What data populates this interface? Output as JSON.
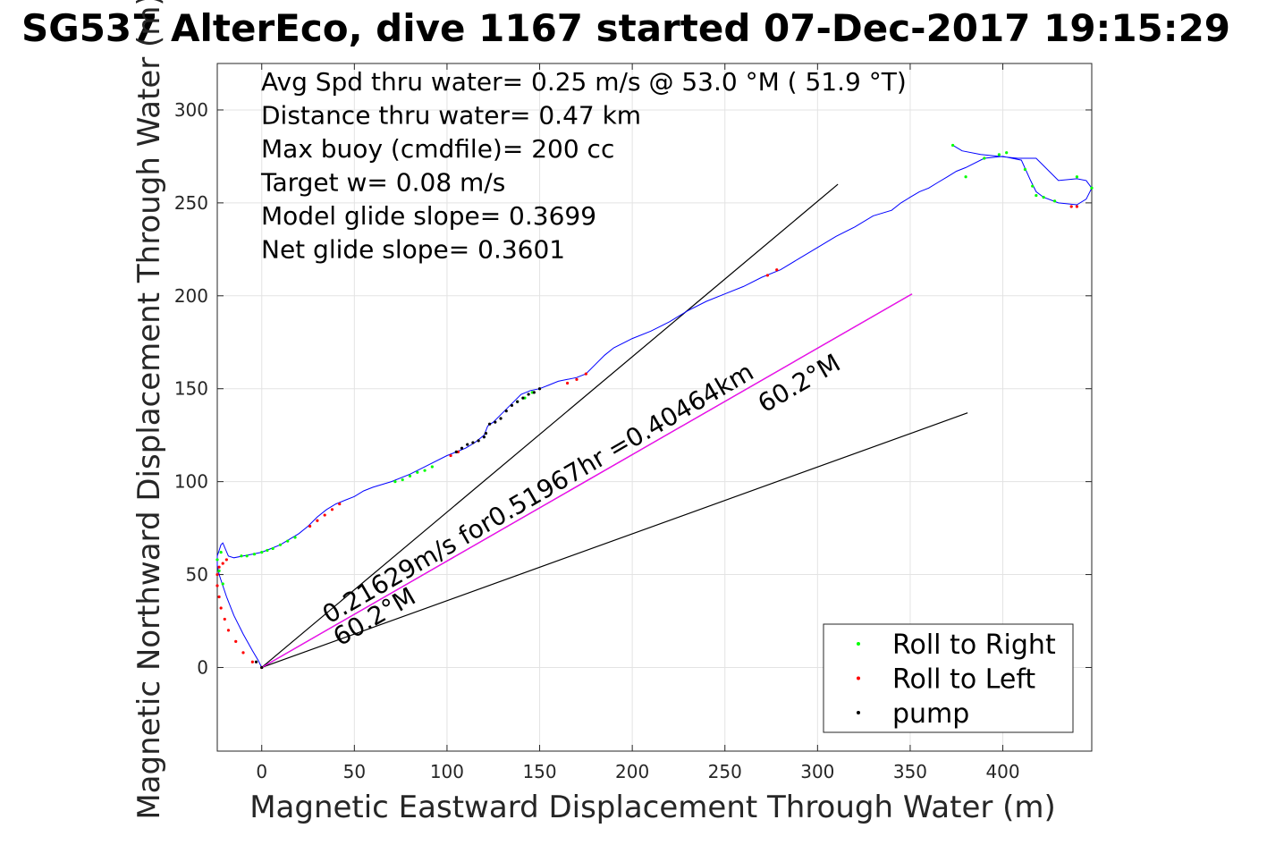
{
  "chart_data": {
    "type": "line",
    "title": "SG537 AlterEco, dive 1167 started 07-Dec-2017 19:15:29",
    "xlabel": "Magnetic Eastward Displacement Through Water (m)",
    "ylabel": "Magnetic Northward Displacement Through Water (m)",
    "xlim": [
      -24,
      448
    ],
    "ylim": [
      -45,
      325
    ],
    "x_ticks": [
      0,
      50,
      100,
      150,
      200,
      250,
      300,
      350,
      400
    ],
    "x_tick_labels": [
      "0",
      "50",
      "100",
      "150",
      "200",
      "250",
      "300",
      "350",
      "400"
    ],
    "y_ticks": [
      0,
      50,
      100,
      150,
      200,
      250,
      300
    ],
    "y_tick_labels": [
      "0",
      "50",
      "100",
      "150",
      "200",
      "250",
      "300"
    ],
    "grid": true,
    "annotations": [
      "Avg Spd thru water=  0.25 m/s @  53.0 °M ( 51.9 °T)",
      "Distance thru water=  0.47 km",
      "Max buoy (cmdfile)= 200 cc",
      "Target w= 0.08 m/s",
      "Model glide slope= 0.3699",
      "Net glide slope= 0.3601"
    ],
    "line_labels": {
      "summary": "0.21629m/s for0.51967hr =0.40464km",
      "heading_start": "60.2°M",
      "heading_end": "60.2°M"
    },
    "legend": {
      "placement": "bottom-right",
      "entries": [
        {
          "label": "Roll to Right",
          "color": "#00ff00"
        },
        {
          "label": "Roll to Left",
          "color": "#ff0000"
        },
        {
          "label": "pump",
          "color": "#000000"
        }
      ]
    },
    "series": [
      {
        "color": "#0000ff",
        "x": [
          0,
          -2,
          -5,
          -10,
          -15,
          -19,
          -21,
          -23,
          -24,
          -24,
          -23,
          -22,
          -21,
          -18,
          -15,
          -10,
          -5,
          0,
          5,
          10,
          15,
          20,
          25,
          30,
          35,
          40,
          45,
          50,
          55,
          60,
          70,
          80,
          90,
          100,
          105,
          110,
          115,
          120,
          122,
          125,
          130,
          135,
          140,
          145,
          150,
          155,
          160,
          165,
          170,
          175,
          180,
          185,
          190,
          200,
          210,
          220,
          230,
          240,
          250,
          260,
          270,
          280,
          290,
          300,
          310,
          320,
          330,
          340,
          345,
          350,
          355,
          360,
          365,
          370,
          375,
          380,
          390,
          400,
          410,
          415,
          418,
          422,
          430,
          440,
          445,
          448,
          445,
          440,
          430,
          418,
          408,
          398,
          388,
          378,
          373
        ],
        "y": [
          0,
          4,
          9,
          18,
          28,
          38,
          44,
          50,
          55,
          60,
          63,
          66,
          67,
          60,
          59,
          60,
          61,
          62,
          64,
          66,
          69,
          72,
          76,
          81,
          85,
          88,
          90,
          92,
          95,
          97,
          100,
          104,
          109,
          114,
          116,
          118,
          121,
          125,
          130,
          132,
          137,
          142,
          147,
          149,
          150,
          152,
          154,
          155,
          156,
          158,
          163,
          168,
          172,
          177,
          181,
          186,
          192,
          197,
          201,
          205,
          210,
          214,
          220,
          226,
          232,
          237,
          243,
          246,
          250,
          253,
          256,
          258,
          261,
          264,
          267,
          269,
          274,
          275,
          273,
          262,
          256,
          253,
          250,
          249,
          252,
          258,
          262,
          263,
          262,
          274,
          274,
          275,
          276,
          278,
          281
        ]
      },
      {
        "name": "Roll to Right",
        "color": "#00ff00",
        "x": [
          -21,
          -23,
          -24,
          -22,
          -11,
          -8,
          -4,
          0,
          3,
          6,
          10,
          14,
          18,
          72,
          76,
          80,
          84,
          88,
          92,
          138,
          142,
          146,
          380,
          390,
          398,
          402,
          412,
          416,
          418,
          422,
          428,
          440,
          448,
          373
        ],
        "y": [
          45,
          52,
          58,
          62,
          60,
          60,
          61,
          62,
          63,
          64,
          66,
          68,
          70,
          100,
          101,
          103,
          105,
          106,
          108,
          143,
          145,
          148,
          264,
          274,
          276,
          277,
          268,
          259,
          254,
          253,
          251,
          264,
          258,
          281
        ]
      },
      {
        "name": "Roll to Left",
        "color": "#ff0000",
        "x": [
          0,
          -5,
          -10,
          -14,
          -18,
          -20,
          -22,
          -23,
          -24,
          -24,
          -23,
          -21,
          -19,
          26,
          30,
          34,
          38,
          42,
          102,
          106,
          165,
          170,
          175,
          273,
          278,
          437,
          440
        ],
        "y": [
          0,
          3,
          8,
          14,
          20,
          26,
          32,
          38,
          44,
          50,
          54,
          56,
          58,
          76,
          79,
          82,
          85,
          88,
          114,
          116,
          153,
          155,
          158,
          211,
          214,
          248,
          248
        ]
      },
      {
        "name": "pump",
        "color": "#000000",
        "x": [
          0,
          -3,
          105,
          108,
          111,
          114,
          117,
          120,
          121,
          123,
          126,
          129,
          132,
          135,
          138,
          141,
          144,
          147,
          150
        ],
        "y": [
          0,
          3,
          116,
          118,
          120,
          121,
          122,
          124,
          126,
          131,
          132,
          134,
          138,
          141,
          143,
          145,
          147,
          148,
          150
        ]
      }
    ],
    "reference_lines": [
      {
        "color": "#000000",
        "x": [
          0,
          311
        ],
        "y": [
          0,
          260
        ]
      },
      {
        "color": "#000000",
        "x": [
          0,
          381
        ],
        "y": [
          0,
          137
        ]
      },
      {
        "color": "#000000",
        "x": [
          0,
          351
        ],
        "y": [
          0,
          201
        ]
      },
      {
        "color": "#ff00ff",
        "x": [
          0,
          351
        ],
        "y": [
          0,
          201
        ]
      }
    ]
  }
}
